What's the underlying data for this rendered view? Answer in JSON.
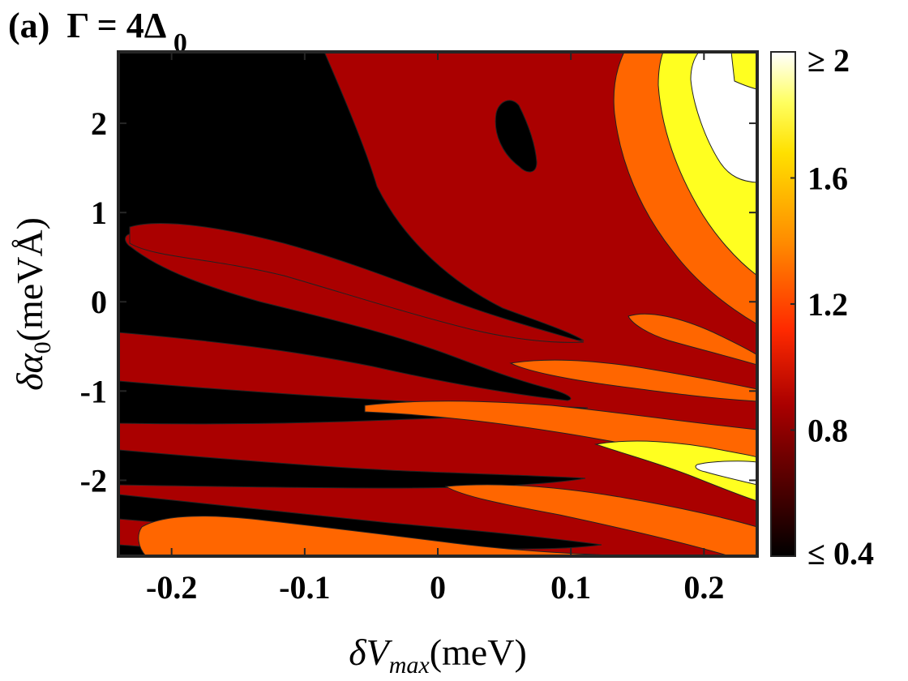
{
  "chart_data": {
    "type": "heatmap",
    "subtype": "filled-contour",
    "title": {
      "panel": "(a)",
      "text": "Γ = 4Δ",
      "subscript": "0"
    },
    "xlabel": {
      "symbol": "δV",
      "subscript": "max",
      "unit": "(meV)"
    },
    "ylabel": {
      "symbol": "δα",
      "subscript": "0",
      "unit": "(meVÅ)"
    },
    "xlim": [
      -0.24,
      0.24
    ],
    "ylim": [
      -2.85,
      2.8
    ],
    "xticks": [
      -0.2,
      -0.1,
      0,
      0.1,
      0.2
    ],
    "xtick_labels": [
      "-0.2",
      "-0.1",
      "0",
      "0.1",
      "0.2"
    ],
    "yticks": [
      2,
      1,
      0,
      -1,
      -2
    ],
    "ytick_labels": [
      "2",
      "1",
      "0",
      "-1",
      "-2"
    ],
    "colorbar": {
      "range": [
        0.4,
        2.0
      ],
      "ticks": [
        2.0,
        1.6,
        1.2,
        0.8,
        0.4
      ],
      "tick_labels": [
        "≥ 2",
        "1.6",
        "1.2",
        "0.8",
        "≤ 0.4"
      ],
      "colormap": "hot"
    },
    "contour_levels": [
      0.6,
      1.0,
      1.2,
      1.6,
      1.8
    ],
    "level_colors": [
      "#000000",
      "#aa0000",
      "#ff6600",
      "#ffff20",
      "#ffffff"
    ],
    "grid": false
  }
}
